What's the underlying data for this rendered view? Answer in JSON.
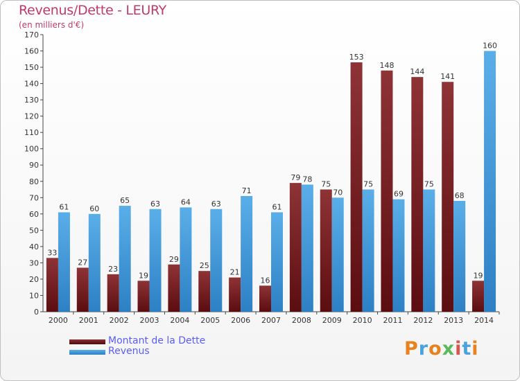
{
  "chart_data": {
    "type": "bar",
    "title": "Revenus/Dette - LEURY",
    "subtitle": "(en milliers d'€)",
    "categories": [
      "2000",
      "2001",
      "2002",
      "2003",
      "2004",
      "2005",
      "2006",
      "2007",
      "2008",
      "2009",
      "2010",
      "2011",
      "2012",
      "2013",
      "2014"
    ],
    "series": [
      {
        "name": "Montant de la Dette",
        "color": "#7a1f22",
        "values": [
          33,
          27,
          23,
          19,
          29,
          25,
          21,
          16,
          79,
          75,
          153,
          148,
          144,
          141,
          19
        ]
      },
      {
        "name": "Revenus",
        "color": "#3d9de0",
        "values": [
          61,
          60,
          65,
          63,
          64,
          63,
          71,
          61,
          78,
          70,
          75,
          69,
          75,
          68,
          160
        ]
      }
    ],
    "ylim": [
      0,
      170
    ],
    "ytick_step": 10,
    "grid": false,
    "legend_position": "bottom-left"
  },
  "branding": {
    "logo_letters": [
      "P",
      "r",
      "o",
      "x",
      "i",
      "t",
      "i"
    ],
    "logo_colors": [
      "#e8821e",
      "#4aa3df",
      "#e8821e",
      "#5cb85c",
      "#d9534f",
      "#4aa3df",
      "#e8821e"
    ]
  }
}
